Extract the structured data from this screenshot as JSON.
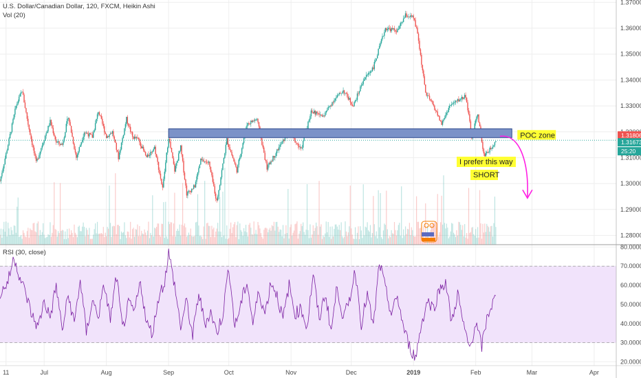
{
  "header": {
    "symbol_line": "U.S. Dollar/Canadian Dollar, 120, FXCM, Heikin Ashi",
    "volume_label": "Vol (20)",
    "rsi_label": "RSI (30, close)"
  },
  "chart_data": {
    "type": "candlestick",
    "price_axis": {
      "ticks": [
        "1.28000",
        "1.29000",
        "1.30000",
        "1.31000",
        "1.32000",
        "1.33000",
        "1.34000",
        "1.35000",
        "1.36000",
        "1.37000"
      ],
      "ylim": [
        1.2764,
        1.3709
      ]
    },
    "price_badges": [
      {
        "text": "1.31806",
        "value": 1.31806,
        "color": "#ef5350"
      },
      {
        "text": "1.31673",
        "value": 1.31673,
        "color": "#26a69a"
      },
      {
        "text": "25:20",
        "value": 1.3128,
        "color": "#26a69a"
      }
    ],
    "time_axis": {
      "labels": [
        "11",
        "Jul",
        "Aug",
        "Sep",
        "Oct",
        "Nov",
        "Dec",
        "2019",
        "Feb",
        "Mar",
        "Apr"
      ],
      "positions_days": [
        -19,
        0,
        31,
        62,
        92,
        123,
        153,
        184,
        215,
        243,
        274
      ]
    },
    "price_path_days": [
      -22,
      -18,
      -14,
      -11,
      -8,
      -4,
      -1,
      3,
      6,
      9,
      12,
      16,
      20,
      24,
      27,
      31,
      34,
      37,
      41,
      44,
      47,
      51,
      55,
      59,
      62,
      65,
      68,
      71,
      75,
      78,
      82,
      86,
      91,
      96,
      101,
      106,
      111,
      117,
      122,
      128,
      133,
      139,
      144,
      149,
      154,
      159,
      164,
      170,
      176,
      180,
      184,
      186,
      190,
      194,
      198,
      202,
      206,
      210,
      213,
      216,
      219,
      222,
      225
    ],
    "price_path_values": [
      1.301,
      1.315,
      1.33,
      1.336,
      1.323,
      1.308,
      1.315,
      1.324,
      1.316,
      1.315,
      1.326,
      1.31,
      1.32,
      1.318,
      1.328,
      1.318,
      1.32,
      1.31,
      1.325,
      1.318,
      1.317,
      1.31,
      1.314,
      1.298,
      1.318,
      1.305,
      1.314,
      1.296,
      1.299,
      1.309,
      1.308,
      1.293,
      1.317,
      1.305,
      1.323,
      1.325,
      1.306,
      1.314,
      1.32,
      1.313,
      1.328,
      1.326,
      1.332,
      1.336,
      1.33,
      1.34,
      1.345,
      1.36,
      1.359,
      1.365,
      1.364,
      1.358,
      1.335,
      1.33,
      1.323,
      1.33,
      1.332,
      1.334,
      1.318,
      1.327,
      1.311,
      1.313,
      1.3167
    ],
    "poc_zone": {
      "label": "POC zone",
      "from_day": 62,
      "to_day": 233,
      "low": 1.3188,
      "high": 1.3201
    },
    "annotations": {
      "line1": "I prefer this way",
      "line2": "SHORT"
    },
    "rsi": {
      "ticks": [
        "20.0000",
        "30.0000",
        "40.0000",
        "50.0000",
        "60.0000",
        "70.0000",
        "80.0000"
      ],
      "ylim": [
        18,
        80.5
      ],
      "band": [
        30,
        70
      ],
      "path_days": [
        -22,
        -18,
        -15,
        -12,
        -9,
        -6,
        -3,
        0,
        3,
        6,
        9,
        12,
        15,
        18,
        21,
        24,
        27,
        30,
        33,
        36,
        39,
        42,
        45,
        48,
        51,
        54,
        57,
        60,
        62,
        65,
        68,
        71,
        74,
        77,
        80,
        83,
        86,
        89,
        92,
        95,
        98,
        101,
        104,
        107,
        110,
        113,
        116,
        119,
        122,
        125,
        128,
        131,
        134,
        137,
        140,
        143,
        146,
        149,
        152,
        155,
        158,
        161,
        164,
        167,
        170,
        173,
        176,
        179,
        182,
        185,
        188,
        191,
        194,
        197,
        200,
        203,
        206,
        209,
        212,
        215,
        218,
        221,
        225
      ],
      "path_values": [
        55,
        62,
        75,
        64,
        55,
        44,
        38,
        52,
        43,
        60,
        36,
        55,
        40,
        63,
        35,
        52,
        44,
        60,
        42,
        65,
        37,
        50,
        46,
        62,
        40,
        35,
        54,
        62,
        77,
        60,
        38,
        52,
        33,
        56,
        40,
        46,
        35,
        45,
        70,
        38,
        50,
        62,
        40,
        57,
        45,
        62,
        55,
        42,
        60,
        45,
        48,
        38,
        66,
        42,
        56,
        36,
        60,
        42,
        52,
        68,
        40,
        55,
        38,
        72,
        58,
        45,
        54,
        38,
        28,
        22,
        40,
        52,
        48,
        58,
        62,
        40,
        56,
        38,
        27,
        40,
        28,
        45,
        54
      ]
    },
    "volume": {
      "height_units": 0.55
    }
  },
  "colors": {
    "up": "#26a69a",
    "down": "#ef5350",
    "poc_fill": "#7b92c8",
    "poc_stroke": "#2f4b8f",
    "annotation_bg": "#ffff33",
    "arrow": "#ff1ee3",
    "rsi_line": "#7b1fa2",
    "rsi_band": "#f1e3fb"
  }
}
